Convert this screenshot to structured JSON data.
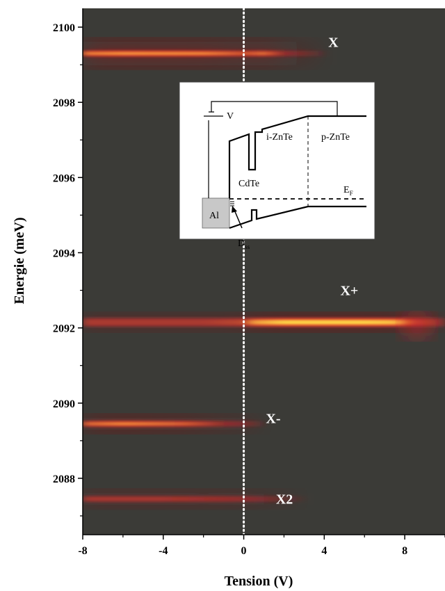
{
  "chart_data": {
    "type": "heatmap",
    "xlabel": "Tension (V)",
    "ylabel": "Energie (meV)",
    "xlim": [
      -8,
      10
    ],
    "ylim": [
      2086.5,
      2100.5
    ],
    "x_ticks": [
      -8,
      -4,
      0,
      4,
      8
    ],
    "x_tick_labels": [
      "-8",
      "-4",
      "0",
      "4",
      "8"
    ],
    "y_ticks": [
      2088,
      2090,
      2092,
      2094,
      2096,
      2098,
      2100
    ],
    "y_tick_labels": [
      "2088",
      "2090",
      "2092",
      "2094",
      "2096",
      "2098",
      "2100"
    ],
    "background_color": "#3b3b37",
    "colormap": [
      "#3b3b37",
      "#8a1a1a",
      "#e21d24",
      "#ffe04a"
    ],
    "reference_line": {
      "x": 0,
      "style": "dotted",
      "color": "#ffffff"
    },
    "emission_lines": [
      {
        "label": "X",
        "energy": 2099.3,
        "x_from": -8,
        "x_to": 4,
        "label_x": 4.2,
        "label_energy": 2099.6,
        "profile": [
          [
            -8,
            0.85
          ],
          [
            -6,
            0.95
          ],
          [
            -2,
            0.9
          ],
          [
            0,
            0.7
          ],
          [
            1,
            0.8
          ],
          [
            2,
            0.45
          ],
          [
            4,
            0.1
          ]
        ]
      },
      {
        "label": "X+",
        "energy": 2092.15,
        "x_from": -8,
        "x_to": 10,
        "label_x": 4.8,
        "label_energy": 2093.0,
        "profile": [
          [
            -8,
            0.55
          ],
          [
            -2,
            0.55
          ],
          [
            0,
            0.6
          ],
          [
            0.5,
            0.85
          ],
          [
            2,
            1.0
          ],
          [
            6,
            1.0
          ],
          [
            7.5,
            0.95
          ],
          [
            8.5,
            0.6
          ],
          [
            10,
            0.4
          ]
        ]
      },
      {
        "label": "X-",
        "energy": 2089.45,
        "x_from": -8,
        "x_to": 1,
        "label_x": 1.1,
        "label_energy": 2089.6,
        "profile": [
          [
            -8,
            0.75
          ],
          [
            -6,
            0.9
          ],
          [
            -3,
            0.75
          ],
          [
            -1,
            0.45
          ],
          [
            0,
            0.35
          ],
          [
            1,
            0.1
          ]
        ]
      },
      {
        "label": "X2",
        "energy": 2087.45,
        "x_from": -8,
        "x_to": 3,
        "label_x": 1.6,
        "label_energy": 2087.45,
        "profile": [
          [
            -8,
            0.55
          ],
          [
            -4,
            0.55
          ],
          [
            -1,
            0.5
          ],
          [
            0,
            0.45
          ],
          [
            1,
            0.35
          ],
          [
            3,
            0.05
          ]
        ]
      }
    ]
  },
  "inset": {
    "labels": {
      "v": "V",
      "izntne": "i-ZnTe",
      "pzntne": "p-ZnTe",
      "cdte": "CdTe",
      "ef": "E",
      "ef_sub": "F",
      "al": "Al",
      "dss": "D",
      "dss_sub": "ss"
    }
  }
}
